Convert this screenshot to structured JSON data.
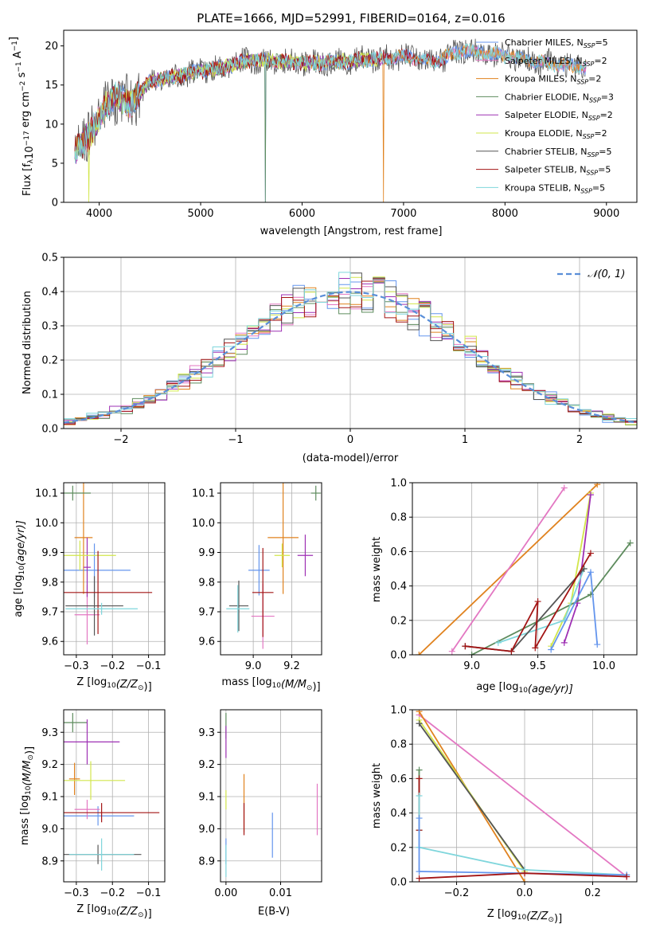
{
  "colors": {
    "Chabrier MILES": "#6495ed",
    "Salpeter MILES": "#e377c2",
    "Kroupa MILES": "#e0821e",
    "Chabrier ELODIE": "#5e8c5e",
    "Salpeter ELODIE": "#9e30b4",
    "Kroupa ELODIE": "#d2e64b",
    "Chabrier STELIB": "#555555",
    "Salpeter STELIB": "#a31515",
    "Kroupa STELIB": "#7fd6dc",
    "normal": "#5a8ed8"
  },
  "chart_data": [
    {
      "id": "spectrum",
      "type": "line",
      "title": "PLATE=1666, MJD=52991, FIBERID=0164, z=0.016",
      "xlabel": "wavelength [Angstrom, rest frame]",
      "ylabel_parts": [
        "Flux [f",
        "λ",
        "10",
        "−17",
        " erg cm",
        "−2",
        " s",
        "−1",
        " A",
        "−1",
        "]"
      ],
      "xlim": [
        3650,
        9300
      ],
      "ylim": [
        0,
        22
      ],
      "xticks": [
        "4000",
        "5000",
        "6000",
        "7000",
        "8000",
        "9000"
      ],
      "yticks": [
        "0",
        "5",
        "10",
        "15",
        "20"
      ],
      "continuum": [
        [
          3750,
          6.0
        ],
        [
          3850,
          8.0
        ],
        [
          3950,
          9.5
        ],
        [
          4050,
          12.0
        ],
        [
          4150,
          13.5
        ],
        [
          4300,
          12.5
        ],
        [
          4500,
          15.5
        ],
        [
          4800,
          16.2
        ],
        [
          5000,
          16.8
        ],
        [
          5200,
          17.2
        ],
        [
          5500,
          18.2
        ],
        [
          5800,
          18.0
        ],
        [
          6100,
          17.8
        ],
        [
          6400,
          18.0
        ],
        [
          6700,
          18.3
        ],
        [
          7000,
          18.6
        ],
        [
          7300,
          18.0
        ],
        [
          7600,
          19.5
        ],
        [
          7800,
          19.0
        ],
        [
          8000,
          18.8
        ],
        [
          8300,
          18.0
        ],
        [
          8600,
          17.5
        ],
        [
          8850,
          17.2
        ]
      ],
      "series": [
        {
          "name": "Chabrier MILES",
          "nssp": "5",
          "xmax": 8800,
          "drops": [
            5640
          ],
          "noise": 0.8
        },
        {
          "name": "Salpeter MILES",
          "nssp": "2",
          "xmax": 8800,
          "drops": [],
          "noise": 0.7
        },
        {
          "name": "Kroupa MILES",
          "nssp": "2",
          "xmax": 8800,
          "drops": [
            6800
          ],
          "noise": 0.7
        },
        {
          "name": "Chabrier ELODIE",
          "nssp": "3",
          "xmax": 6800,
          "drops": [
            5640
          ],
          "noise": 0.7
        },
        {
          "name": "Salpeter ELODIE",
          "nssp": "2",
          "xmax": 6800,
          "drops": [],
          "noise": 0.7
        },
        {
          "name": "Kroupa ELODIE",
          "nssp": "2",
          "xmax": 6800,
          "drops": [
            3900
          ],
          "noise": 0.8
        },
        {
          "name": "Chabrier STELIB",
          "nssp": "5",
          "xmax": 8800,
          "drops": [],
          "noise": 1.6
        },
        {
          "name": "Salpeter STELIB",
          "nssp": "5",
          "xmax": 7430,
          "drops": [
            7430
          ],
          "noise": 0.9
        },
        {
          "name": "Kroupa STELIB",
          "nssp": "5",
          "xmax": 8800,
          "drops": [],
          "noise": 0.8
        }
      ]
    },
    {
      "id": "residual",
      "type": "line",
      "xlabel": "(data-model)/error",
      "ylabel": "Normed distribution",
      "xlim": [
        -2.5,
        2.5
      ],
      "ylim": [
        0,
        0.5
      ],
      "xticks": [
        "−2",
        "−1",
        "0",
        "1",
        "2"
      ],
      "yticks": [
        "0.0",
        "0.1",
        "0.2",
        "0.3",
        "0.4",
        "0.5"
      ],
      "grid": true,
      "legend": {
        "label": "𝒩(0, 1)",
        "position": "top-right"
      },
      "bin_width": 0.1
    },
    {
      "id": "age_vs_Z",
      "type": "scatter",
      "xlabel_parts": [
        "Z [log",
        "10",
        "(Z/Z",
        "⊙",
        ")]"
      ],
      "ylabel_parts": [
        "age  [log",
        "10",
        "(age/yr)]"
      ],
      "xlim": [
        -0.335,
        -0.055
      ],
      "ylim": [
        9.555,
        10.135
      ],
      "xticks": [
        -0.3,
        -0.2,
        -0.1
      ],
      "yticks": [
        9.6,
        9.7,
        9.8,
        9.9,
        10.0,
        10.1
      ],
      "points": [
        {
          "s": "Chabrier MILES",
          "x": -0.25,
          "xerr": 0.1,
          "y": 9.84,
          "yerr": 0.09
        },
        {
          "s": "Salpeter MILES",
          "x": -0.27,
          "xerr": 0.035,
          "y": 9.69,
          "yerr": 0.1
        },
        {
          "s": "Kroupa MILES",
          "x": -0.28,
          "xerr": 0.025,
          "y": 9.95,
          "yerr": 0.19
        },
        {
          "s": "Chabrier ELODIE",
          "x": -0.31,
          "xerr": 0.05,
          "y": 10.1,
          "yerr": 0.025
        },
        {
          "s": "Salpeter ELODIE",
          "x": -0.27,
          "xerr": 0.01,
          "y": 9.85,
          "yerr": 0.1
        },
        {
          "s": "Kroupa ELODIE",
          "x": -0.29,
          "xerr": 0.1,
          "y": 9.89,
          "yerr": 0.05
        },
        {
          "s": "Chabrier STELIB",
          "x": -0.25,
          "xerr": 0.08,
          "y": 9.72,
          "yerr": 0.1
        },
        {
          "s": "Salpeter STELIB",
          "x": -0.24,
          "xerr": 0.15,
          "y": 9.765,
          "yerr": 0.14
        },
        {
          "s": "Kroupa STELIB",
          "x": -0.23,
          "xerr": 0.1,
          "y": 9.71,
          "yerr": 0.02
        }
      ]
    },
    {
      "id": "age_vs_mass",
      "type": "scatter",
      "xlabel_parts": [
        "mass [log",
        "10",
        "(M/M",
        "⊙",
        ")]"
      ],
      "xlim": [
        8.83,
        9.355
      ],
      "ylim": [
        9.555,
        10.135
      ],
      "xticks": [
        9.0,
        9.2
      ],
      "yticks": [
        9.6,
        9.7,
        9.8,
        9.9,
        10.0,
        10.1
      ],
      "points": [
        {
          "s": "Chabrier MILES",
          "x": 9.03,
          "xerr": 0.055,
          "y": 9.84,
          "yerr": 0.085
        },
        {
          "s": "Salpeter MILES",
          "x": 9.05,
          "xerr": 0.06,
          "y": 9.685,
          "yerr": 0.11
        },
        {
          "s": "Kroupa MILES",
          "x": 9.155,
          "xerr": 0.08,
          "y": 9.95,
          "yerr": 0.19
        },
        {
          "s": "Chabrier ELODIE",
          "x": 9.325,
          "xerr": 0.025,
          "y": 10.1,
          "yerr": 0.025
        },
        {
          "s": "Salpeter ELODIE",
          "x": 9.27,
          "xerr": 0.04,
          "y": 9.89,
          "yerr": 0.07
        },
        {
          "s": "Kroupa ELODIE",
          "x": 9.15,
          "xerr": 0.04,
          "y": 9.89,
          "yerr": 0.04
        },
        {
          "s": "Chabrier STELIB",
          "x": 8.925,
          "xerr": 0.05,
          "y": 9.72,
          "yerr": 0.085
        },
        {
          "s": "Salpeter STELIB",
          "x": 9.05,
          "xerr": 0.055,
          "y": 9.765,
          "yerr": 0.15
        },
        {
          "s": "Kroupa STELIB",
          "x": 8.92,
          "xerr": 0.06,
          "y": 9.71,
          "yerr": 0.08
        }
      ]
    },
    {
      "id": "weight_vs_age",
      "type": "line",
      "xlabel_parts": [
        "age  [log",
        "10",
        "(age/yr)]"
      ],
      "ylabel": "mass weight",
      "xlim": [
        8.55,
        10.25
      ],
      "ylim": [
        0,
        1
      ],
      "xticks": [
        9.0,
        9.5,
        10.0
      ],
      "yticks": [
        0.0,
        0.2,
        0.4,
        0.6,
        0.8,
        1.0
      ],
      "grid": true,
      "lines": [
        {
          "s": "Kroupa MILES",
          "pts": [
            [
              8.6,
              0.0
            ],
            [
              9.95,
              0.99
            ]
          ]
        },
        {
          "s": "Salpeter MILES",
          "pts": [
            [
              8.85,
              0.02
            ],
            [
              9.7,
              0.97
            ]
          ]
        },
        {
          "s": "Kroupa ELODIE",
          "pts": [
            [
              9.6,
              0.05
            ],
            [
              9.75,
              0.3
            ],
            [
              9.9,
              0.94
            ]
          ]
        },
        {
          "s": "Salpeter ELODIE",
          "pts": [
            [
              9.7,
              0.07
            ],
            [
              9.8,
              0.3
            ],
            [
              9.9,
              0.93
            ]
          ]
        },
        {
          "s": "Chabrier ELODIE",
          "pts": [
            [
              9.0,
              0.0
            ],
            [
              9.9,
              0.35
            ],
            [
              10.2,
              0.65
            ]
          ]
        },
        {
          "s": "Kroupa STELIB",
          "pts": [
            [
              9.2,
              0.07
            ],
            [
              9.7,
              0.2
            ],
            [
              9.85,
              0.5
            ]
          ]
        },
        {
          "s": "Chabrier STELIB",
          "pts": [
            [
              8.95,
              0.05
            ],
            [
              9.3,
              0.02
            ],
            [
              9.85,
              0.5
            ]
          ]
        },
        {
          "s": "Salpeter STELIB",
          "pts": [
            [
              8.95,
              0.05
            ],
            [
              9.3,
              0.02
            ],
            [
              9.5,
              0.31
            ],
            [
              9.48,
              0.04
            ],
            [
              9.9,
              0.59
            ]
          ]
        },
        {
          "s": "Chabrier MILES",
          "pts": [
            [
              9.6,
              0.03
            ],
            [
              9.9,
              0.48
            ],
            [
              9.95,
              0.06
            ]
          ]
        }
      ]
    },
    {
      "id": "mass_vs_Z",
      "type": "scatter",
      "xlabel_parts": [
        "Z [log",
        "10",
        "(Z/Z",
        "⊙",
        ")]"
      ],
      "ylabel_parts": [
        "mass [log",
        "10",
        "(M/M",
        "⊙",
        ")]"
      ],
      "xlim": [
        -0.335,
        -0.055
      ],
      "ylim": [
        8.835,
        9.37
      ],
      "xticks": [
        -0.3,
        -0.2,
        -0.1
      ],
      "yticks": [
        8.9,
        9.0,
        9.1,
        9.2,
        9.3
      ],
      "points": [
        {
          "s": "Chabrier MILES",
          "x": -0.24,
          "xerr": 0.1,
          "y": 9.04,
          "yerr": 0.03
        },
        {
          "s": "Salpeter MILES",
          "x": -0.27,
          "xerr": 0.035,
          "y": 9.06,
          "yerr": 0.03
        },
        {
          "s": "Kroupa MILES",
          "x": -0.305,
          "xerr": 0.015,
          "y": 9.155,
          "yerr": 0.05
        },
        {
          "s": "Chabrier ELODIE",
          "x": -0.31,
          "xerr": 0.04,
          "y": 9.33,
          "yerr": 0.03
        },
        {
          "s": "Salpeter ELODIE",
          "x": -0.27,
          "xerr": 0.09,
          "y": 9.27,
          "yerr": 0.07
        },
        {
          "s": "Kroupa ELODIE",
          "x": -0.26,
          "xerr": 0.095,
          "y": 9.15,
          "yerr": 0.06
        },
        {
          "s": "Chabrier STELIB",
          "x": -0.24,
          "xerr": 0.12,
          "y": 8.92,
          "yerr": 0.03
        },
        {
          "s": "Salpeter STELIB",
          "x": -0.23,
          "xerr": 0.16,
          "y": 9.05,
          "yerr": 0.03
        },
        {
          "s": "Kroupa STELIB",
          "x": -0.23,
          "xerr": 0.09,
          "y": 8.92,
          "yerr": 0.05
        }
      ]
    },
    {
      "id": "mass_vs_ebv",
      "type": "scatter",
      "xlabel": "E(B-V)",
      "xlim": [
        -0.001,
        0.0175
      ],
      "ylim": [
        8.835,
        9.37
      ],
      "xticks": [
        0.0,
        0.01
      ],
      "yticks": [
        8.9,
        9.0,
        9.1,
        9.2,
        9.3
      ],
      "points": [
        {
          "s": "Chabrier MILES",
          "x": 0.0,
          "y": 8.93,
          "yerr": 0.04
        },
        {
          "s": "Kroupa ELODIE",
          "x": 0.0,
          "y": 9.09,
          "yerr": 0.03
        },
        {
          "s": "Chabrier ELODIE",
          "x": 0.0,
          "y": 9.32,
          "yerr": 0.04
        },
        {
          "s": "Salpeter ELODIE",
          "x": 0.0,
          "y": 9.27,
          "yerr": 0.05
        },
        {
          "s": "Kroupa STELIB",
          "x": 0.0,
          "y": 8.9,
          "yerr": 0.05
        },
        {
          "s": "Kroupa MILES",
          "x": 0.0033,
          "y": 9.08,
          "yerr": 0.09
        },
        {
          "s": "Salpeter STELIB",
          "x": 0.0033,
          "y": 9.03,
          "yerr": 0.05
        },
        {
          "s": "Chabrier MILES",
          "x": 0.0085,
          "y": 8.98,
          "yerr": 0.07
        },
        {
          "s": "Salpeter MILES",
          "x": 0.0167,
          "y": 9.06,
          "yerr": 0.08
        }
      ]
    },
    {
      "id": "weight_vs_Z",
      "type": "line",
      "xlabel_parts": [
        "Z [log",
        "10",
        "(Z/Z",
        "⊙",
        ")]"
      ],
      "ylabel": "mass weight",
      "xlim": [
        -0.33,
        0.33
      ],
      "ylim": [
        0,
        1
      ],
      "xticks": [
        -0.2,
        0.0,
        0.2
      ],
      "yticks": [
        0.0,
        0.2,
        0.4,
        0.6,
        0.8,
        1.0
      ],
      "grid": true,
      "lines": [
        {
          "s": "Salpeter MILES",
          "pts": [
            [
              -0.31,
              0.97
            ],
            [
              0.3,
              0.03
            ]
          ]
        },
        {
          "s": "Kroupa MILES",
          "pts": [
            [
              -0.31,
              0.99
            ],
            [
              0.0,
              0.0
            ]
          ]
        },
        {
          "s": "Kroupa ELODIE",
          "pts": [
            [
              -0.31,
              0.94
            ],
            [
              0.0,
              0.06
            ]
          ]
        },
        {
          "s": "Chabrier STELIB",
          "pts": [
            [
              -0.31,
              0.92
            ],
            [
              0.0,
              0.07
            ]
          ]
        },
        {
          "s": "Kroupa STELIB",
          "pts": [
            [
              -0.31,
              0.2
            ],
            [
              0.0,
              0.07
            ],
            [
              0.3,
              0.04
            ]
          ]
        },
        {
          "s": "Chabrier MILES",
          "pts": [
            [
              -0.31,
              0.06
            ],
            [
              0.3,
              0.04
            ]
          ]
        },
        {
          "s": "Salpeter STELIB",
          "pts": [
            [
              -0.31,
              0.02
            ],
            [
              0.0,
              0.05
            ],
            [
              0.3,
              0.03
            ]
          ]
        },
        {
          "s": "Chabrier ELODIE",
          "pts": [
            [
              -0.31,
              0.65
            ],
            [
              -0.31,
              0.3
            ]
          ]
        },
        {
          "s": "Salpeter STELIB",
          "pts": [
            [
              -0.31,
              0.6
            ],
            [
              -0.31,
              0.3
            ]
          ]
        },
        {
          "s": "Kroupa STELIB",
          "pts": [
            [
              -0.31,
              0.5
            ],
            [
              -0.31,
              0.2
            ]
          ]
        },
        {
          "s": "Chabrier MILES",
          "pts": [
            [
              -0.31,
              0.37
            ],
            [
              -0.31,
              0.06
            ]
          ]
        }
      ]
    }
  ]
}
